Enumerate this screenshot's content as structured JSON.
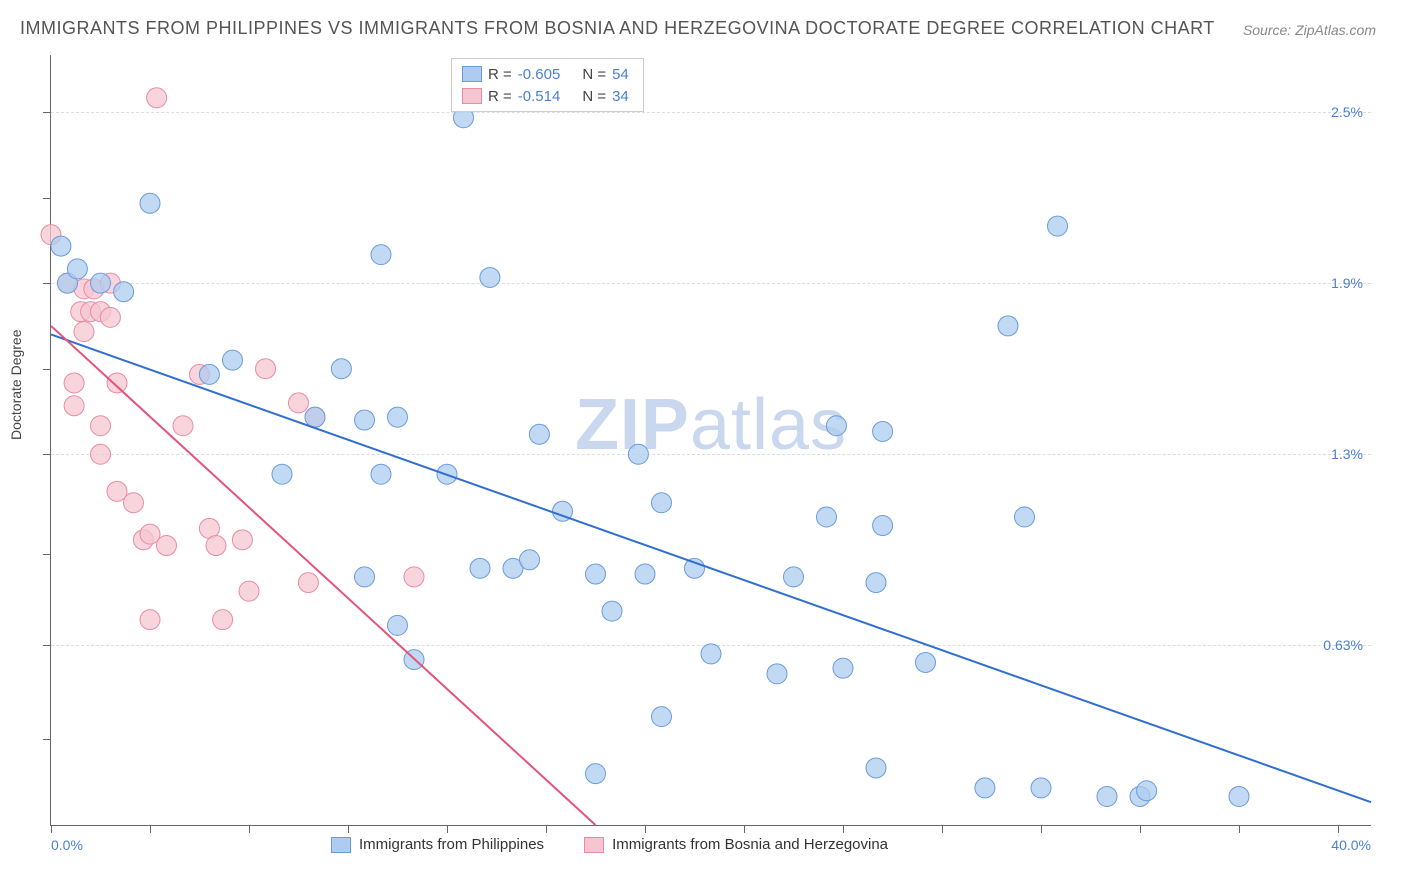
{
  "title": "IMMIGRANTS FROM PHILIPPINES VS IMMIGRANTS FROM BOSNIA AND HERZEGOVINA DOCTORATE DEGREE CORRELATION CHART",
  "source": "Source: ZipAtlas.com",
  "ylabel": "Doctorate Degree",
  "watermark_a": "ZIP",
  "watermark_b": "atlas",
  "chart": {
    "type": "scatter",
    "xlim": [
      0,
      40
    ],
    "ylim": [
      0,
      2.7
    ],
    "x_ticks_at": [
      0,
      3,
      6,
      9,
      12,
      15,
      18,
      21,
      24,
      27,
      30,
      33,
      36,
      39
    ],
    "y_gridlines": [
      0.63,
      1.3,
      1.9,
      2.5
    ],
    "y_tick_labels": [
      "0.63%",
      "1.3%",
      "1.9%",
      "2.5%"
    ],
    "y_minor_ticks": [
      0.3,
      0.63,
      0.95,
      1.3,
      1.6,
      1.9,
      2.2,
      2.5
    ],
    "x_axis_min_label": "0.0%",
    "x_axis_max_label": "40.0%",
    "background_color": "#ffffff",
    "grid_color": "#dddddd",
    "axis_color": "#666666",
    "series": [
      {
        "name": "Immigrants from Philippines",
        "fill": "#aeccf0",
        "stroke": "#6a9bdb",
        "line_color": "#2f6fd0",
        "R": "-0.605",
        "N": "54",
        "trend": {
          "x1": 0,
          "y1": 1.72,
          "x2": 40,
          "y2": 0.08
        },
        "points": [
          [
            0.3,
            2.03
          ],
          [
            0.5,
            1.9
          ],
          [
            0.8,
            1.95
          ],
          [
            1.5,
            1.9
          ],
          [
            3.0,
            2.18
          ],
          [
            12.5,
            2.48
          ],
          [
            10.0,
            2.0
          ],
          [
            13.3,
            1.92
          ],
          [
            5.5,
            1.63
          ],
          [
            8.8,
            1.6
          ],
          [
            8.0,
            1.43
          ],
          [
            9.5,
            1.42
          ],
          [
            10.5,
            1.43
          ],
          [
            7.0,
            1.23
          ],
          [
            10.0,
            1.23
          ],
          [
            12.0,
            1.23
          ],
          [
            9.5,
            0.87
          ],
          [
            11.0,
            0.58
          ],
          [
            10.5,
            0.7
          ],
          [
            13.0,
            0.9
          ],
          [
            14.0,
            0.9
          ],
          [
            14.5,
            0.93
          ],
          [
            14.8,
            1.37
          ],
          [
            15.5,
            1.1
          ],
          [
            16.5,
            0.88
          ],
          [
            17.8,
            1.3
          ],
          [
            18.5,
            1.13
          ],
          [
            18.0,
            0.88
          ],
          [
            16.5,
            0.18
          ],
          [
            17.0,
            0.75
          ],
          [
            18.5,
            0.38
          ],
          [
            19.5,
            0.9
          ],
          [
            20.0,
            0.6
          ],
          [
            22.5,
            0.87
          ],
          [
            22.0,
            0.53
          ],
          [
            23.5,
            1.08
          ],
          [
            23.8,
            1.4
          ],
          [
            24.0,
            0.55
          ],
          [
            25.2,
            1.38
          ],
          [
            25.0,
            0.85
          ],
          [
            25.0,
            0.2
          ],
          [
            25.2,
            1.05
          ],
          [
            26.5,
            0.57
          ],
          [
            28.3,
            0.13
          ],
          [
            29.0,
            1.75
          ],
          [
            29.5,
            1.08
          ],
          [
            30.0,
            0.13
          ],
          [
            30.5,
            2.1
          ],
          [
            32.0,
            0.1
          ],
          [
            33.0,
            0.1
          ],
          [
            33.2,
            0.12
          ],
          [
            36.0,
            0.1
          ],
          [
            4.8,
            1.58
          ],
          [
            2.2,
            1.87
          ]
        ]
      },
      {
        "name": "Immigrants from Bosnia and Herzegovina",
        "fill": "#f6c5d2",
        "stroke": "#e98ba5",
        "line_color": "#e5537a",
        "R": "-0.514",
        "N": "34",
        "trend": {
          "x1": 0,
          "y1": 1.75,
          "x2": 16.5,
          "y2": 0.0
        },
        "points": [
          [
            0.0,
            2.07
          ],
          [
            0.5,
            1.9
          ],
          [
            0.7,
            1.55
          ],
          [
            0.9,
            1.8
          ],
          [
            0.7,
            1.47
          ],
          [
            1.0,
            1.88
          ],
          [
            1.0,
            1.73
          ],
          [
            1.2,
            1.8
          ],
          [
            1.3,
            1.88
          ],
          [
            1.5,
            1.8
          ],
          [
            1.8,
            1.9
          ],
          [
            1.8,
            1.78
          ],
          [
            2.0,
            1.55
          ],
          [
            1.5,
            1.4
          ],
          [
            1.5,
            1.3
          ],
          [
            2.0,
            1.17
          ],
          [
            2.5,
            1.13
          ],
          [
            2.8,
            1.0
          ],
          [
            3.2,
            2.55
          ],
          [
            3.5,
            0.98
          ],
          [
            3.0,
            1.02
          ],
          [
            3.0,
            0.72
          ],
          [
            4.0,
            1.4
          ],
          [
            4.5,
            1.58
          ],
          [
            4.8,
            1.04
          ],
          [
            5.0,
            0.98
          ],
          [
            5.2,
            0.72
          ],
          [
            5.8,
            1.0
          ],
          [
            6.0,
            0.82
          ],
          [
            6.5,
            1.6
          ],
          [
            7.5,
            1.48
          ],
          [
            7.8,
            0.85
          ],
          [
            8.0,
            1.43
          ],
          [
            11.0,
            0.87
          ]
        ]
      }
    ]
  },
  "legend_top": {
    "r_label": "R =",
    "n_label": "N ="
  }
}
